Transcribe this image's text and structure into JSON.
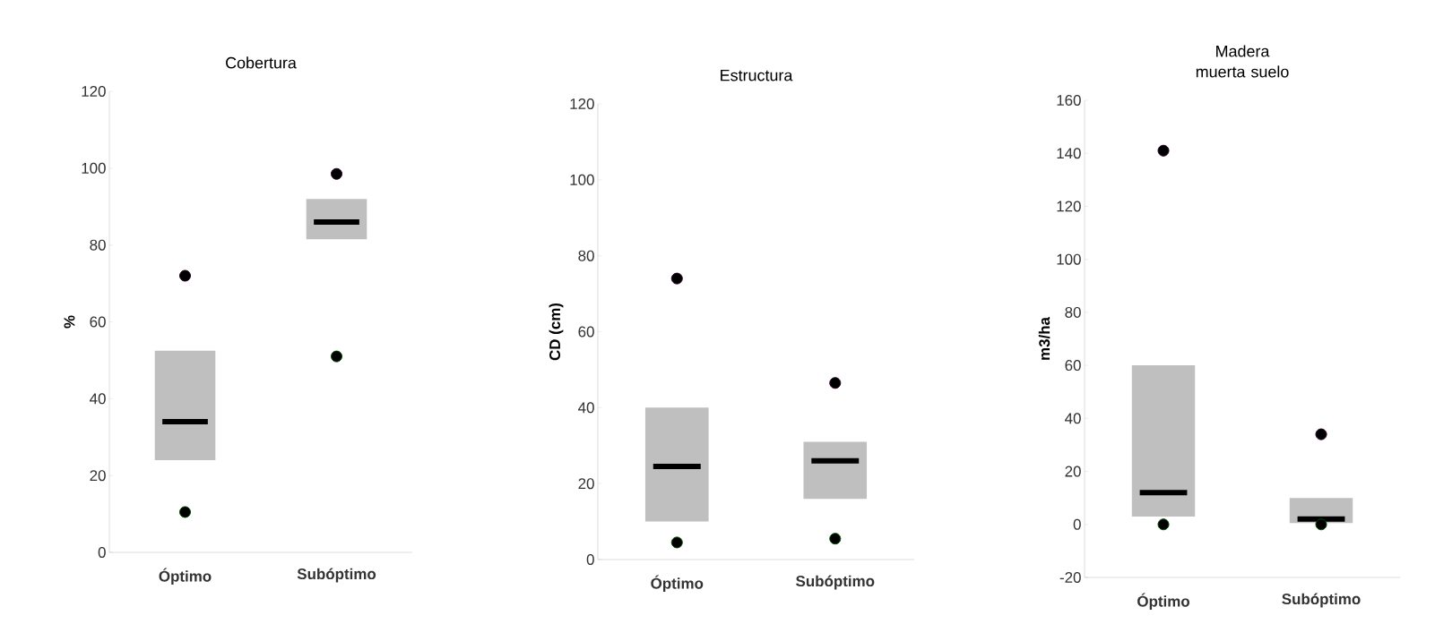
{
  "chart_data": [
    {
      "type": "box",
      "title": "Cobertura",
      "ylabel": "%",
      "categories": [
        "Óptimo",
        "Subóptimo"
      ],
      "color": "#bfbfbf",
      "marker": "circle",
      "ylim": [
        0,
        120
      ],
      "yticks": [
        0,
        20,
        40,
        60,
        80,
        100,
        120
      ],
      "boxes": [
        {
          "low": 24,
          "q1": 24,
          "median": 34,
          "q3": 52.5,
          "high": 52.5,
          "outliers": [
            10.5,
            72
          ]
        },
        {
          "low": 81.5,
          "q1": 81.5,
          "median": 86,
          "q3": 92,
          "high": 92,
          "outliers": [
            51,
            98.5
          ]
        }
      ]
    },
    {
      "type": "box",
      "title": "Estructura",
      "ylabel": "CD (cm)",
      "categories": [
        "Óptimo",
        "Subóptimo"
      ],
      "color": "#bfbfbf",
      "marker": "circle",
      "ylim": [
        0,
        120
      ],
      "yticks": [
        0,
        20,
        40,
        60,
        80,
        100,
        120
      ],
      "boxes": [
        {
          "low": 10,
          "q1": 10,
          "median": 24.5,
          "q3": 40,
          "high": 40,
          "outliers": [
            4.5,
            74
          ]
        },
        {
          "low": 16,
          "q1": 16,
          "median": 26,
          "q3": 31,
          "high": 31,
          "outliers": [
            5.5,
            46.5
          ]
        }
      ]
    },
    {
      "type": "box",
      "title": "Madera muerta suelo",
      "ylabel": "m3/ha",
      "categories": [
        "Óptimo",
        "Subóptimo"
      ],
      "color": "#bfbfbf",
      "marker": "circle",
      "ylim": [
        -20,
        160
      ],
      "yticks": [
        -20,
        0,
        20,
        40,
        60,
        80,
        100,
        120,
        140,
        160
      ],
      "boxes": [
        {
          "low": 3,
          "q1": 3,
          "median": 12,
          "q3": 60,
          "high": 60,
          "outliers": [
            0,
            141
          ]
        },
        {
          "low": 0.5,
          "q1": 0.5,
          "median": 2,
          "q3": 10,
          "high": 10,
          "outliers": [
            0,
            34
          ]
        }
      ]
    }
  ]
}
